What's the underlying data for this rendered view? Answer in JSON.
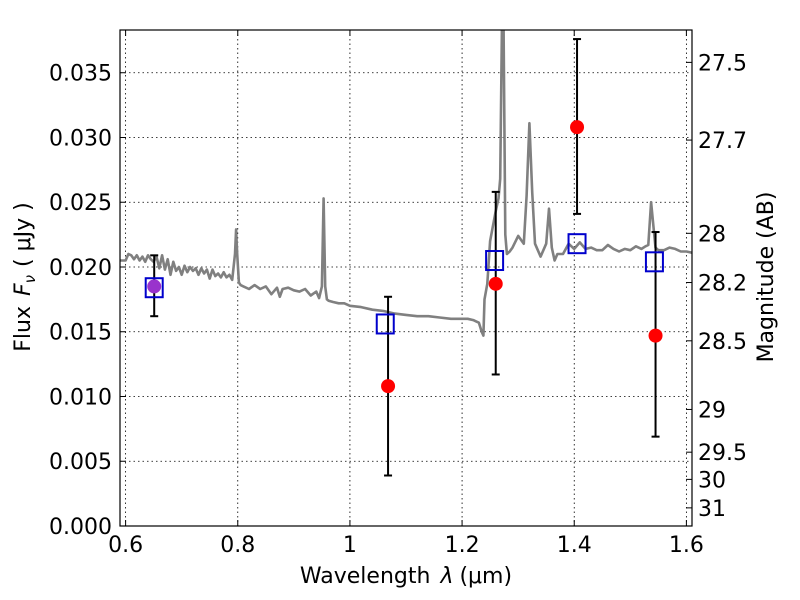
{
  "chart_data": {
    "type": "scatter",
    "xlabel_text": "Wavelength",
    "xlabel_symbol": "λ",
    "xlabel_unit": "(μm)",
    "ylabel_text": "Flux",
    "ylabel_symbol": "F",
    "ylabel_sub": "ν",
    "ylabel_unit": "( μJy )",
    "y2label": "Magnitude (AB)",
    "xlim": [
      0.59,
      1.61
    ],
    "ylim": [
      0.0,
      0.0383
    ],
    "grid": true,
    "x_ticks": [
      0.6,
      0.8,
      1.0,
      1.2,
      1.4,
      1.6
    ],
    "x_tick_labels": [
      "0.6",
      "0.8",
      "1",
      "1.2",
      "1.4",
      "1.6"
    ],
    "y_ticks": [
      0.0,
      0.005,
      0.01,
      0.015,
      0.02,
      0.025,
      0.03,
      0.035
    ],
    "y_tick_labels": [
      "0.000",
      "0.005",
      "0.010",
      "0.015",
      "0.020",
      "0.025",
      "0.030",
      "0.035"
    ],
    "y2_ticks": [
      {
        "label": "27.5",
        "flux": 0.0358
      },
      {
        "label": "27.7",
        "flux": 0.0298
      },
      {
        "label": "28",
        "flux": 0.0226
      },
      {
        "label": "28.2",
        "flux": 0.0188
      },
      {
        "label": "28.5",
        "flux": 0.0143
      },
      {
        "label": "29",
        "flux": 0.009
      },
      {
        "label": "29.5",
        "flux": 0.0057
      },
      {
        "label": "30",
        "flux": 0.0036
      },
      {
        "label": "31",
        "flux": 0.0014
      }
    ],
    "colors": {
      "spectrum": "#808080",
      "observed": "#ff0000",
      "model": "#0000cc",
      "errorbar": "#000000",
      "overlap": "#9933cc"
    },
    "series": [
      {
        "kind": "spectrum",
        "x": [
          0.59,
          0.6,
          0.605,
          0.61,
          0.615,
          0.62,
          0.625,
          0.63,
          0.635,
          0.64,
          0.645,
          0.65,
          0.655,
          0.66,
          0.665,
          0.67,
          0.675,
          0.68,
          0.685,
          0.69,
          0.695,
          0.7,
          0.705,
          0.71,
          0.715,
          0.72,
          0.725,
          0.73,
          0.735,
          0.74,
          0.745,
          0.75,
          0.755,
          0.76,
          0.765,
          0.77,
          0.775,
          0.78,
          0.785,
          0.79,
          0.795,
          0.797,
          0.799,
          0.802,
          0.805,
          0.81,
          0.82,
          0.83,
          0.84,
          0.85,
          0.86,
          0.87,
          0.875,
          0.88,
          0.89,
          0.9,
          0.91,
          0.92,
          0.93,
          0.94,
          0.945,
          0.95,
          0.953,
          0.956,
          0.959,
          0.962,
          0.97,
          0.98,
          0.99,
          1.0,
          1.02,
          1.04,
          1.06,
          1.08,
          1.1,
          1.12,
          1.14,
          1.16,
          1.18,
          1.2,
          1.21,
          1.22,
          1.225,
          1.23,
          1.235,
          1.238,
          1.24,
          1.245,
          1.25,
          1.26,
          1.265,
          1.268,
          1.271,
          1.274,
          1.277,
          1.28,
          1.285,
          1.29,
          1.3,
          1.31,
          1.315,
          1.32,
          1.325,
          1.33,
          1.34,
          1.35,
          1.355,
          1.36,
          1.365,
          1.37,
          1.38,
          1.39,
          1.4,
          1.41,
          1.42,
          1.43,
          1.44,
          1.45,
          1.46,
          1.47,
          1.48,
          1.49,
          1.5,
          1.51,
          1.52,
          1.527,
          1.532,
          1.537,
          1.545,
          1.55,
          1.56,
          1.57,
          1.58,
          1.59,
          1.6,
          1.61
        ],
        "y": [
          0.0205,
          0.0205,
          0.021,
          0.0209,
          0.0206,
          0.0209,
          0.0205,
          0.0208,
          0.0204,
          0.0209,
          0.0206,
          0.0204,
          0.0208,
          0.0199,
          0.0209,
          0.0198,
          0.0206,
          0.0194,
          0.0204,
          0.0197,
          0.02,
          0.0194,
          0.0201,
          0.0196,
          0.02,
          0.0197,
          0.0199,
          0.0194,
          0.0199,
          0.0195,
          0.0198,
          0.0191,
          0.0198,
          0.0193,
          0.0195,
          0.0192,
          0.0196,
          0.0192,
          0.0194,
          0.019,
          0.021,
          0.0229,
          0.021,
          0.0188,
          0.0186,
          0.0185,
          0.0183,
          0.0186,
          0.0183,
          0.0185,
          0.0179,
          0.0184,
          0.0177,
          0.0183,
          0.0184,
          0.0182,
          0.0181,
          0.0183,
          0.0178,
          0.0181,
          0.0176,
          0.0185,
          0.0253,
          0.0185,
          0.0175,
          0.0174,
          0.0173,
          0.0172,
          0.0172,
          0.017,
          0.0169,
          0.0167,
          0.0166,
          0.0164,
          0.0163,
          0.0162,
          0.0162,
          0.0161,
          0.016,
          0.016,
          0.016,
          0.0159,
          0.0158,
          0.0157,
          0.015,
          0.0147,
          0.0175,
          0.0187,
          0.022,
          0.0243,
          0.0253,
          0.0268,
          0.0383,
          0.0383,
          0.0225,
          0.021,
          0.0212,
          0.0215,
          0.0224,
          0.0218,
          0.0255,
          0.0311,
          0.0258,
          0.0218,
          0.0208,
          0.0218,
          0.0245,
          0.0215,
          0.0205,
          0.021,
          0.021,
          0.0218,
          0.0214,
          0.0219,
          0.0214,
          0.0215,
          0.0213,
          0.0213,
          0.0217,
          0.0214,
          0.0212,
          0.0214,
          0.0213,
          0.0216,
          0.0214,
          0.0216,
          0.0217,
          0.025,
          0.0215,
          0.0213,
          0.0213,
          0.0215,
          0.0214,
          0.0212,
          0.0212,
          0.0211
        ]
      },
      {
        "kind": "observed",
        "x": [
          0.651,
          1.068,
          1.26,
          1.405,
          1.545
        ],
        "y": [
          0.0185,
          0.0108,
          0.0187,
          0.0308,
          0.0147
        ],
        "err_low": [
          0.0162,
          0.0039,
          0.0117,
          0.0241,
          0.0069
        ],
        "err_high": [
          0.0209,
          0.0177,
          0.0258,
          0.0376,
          0.0227
        ]
      },
      {
        "kind": "model",
        "x": [
          0.651,
          1.063,
          1.258,
          1.405,
          1.543
        ],
        "y": [
          0.0184,
          0.0156,
          0.0205,
          0.0218,
          0.0204
        ]
      }
    ]
  }
}
